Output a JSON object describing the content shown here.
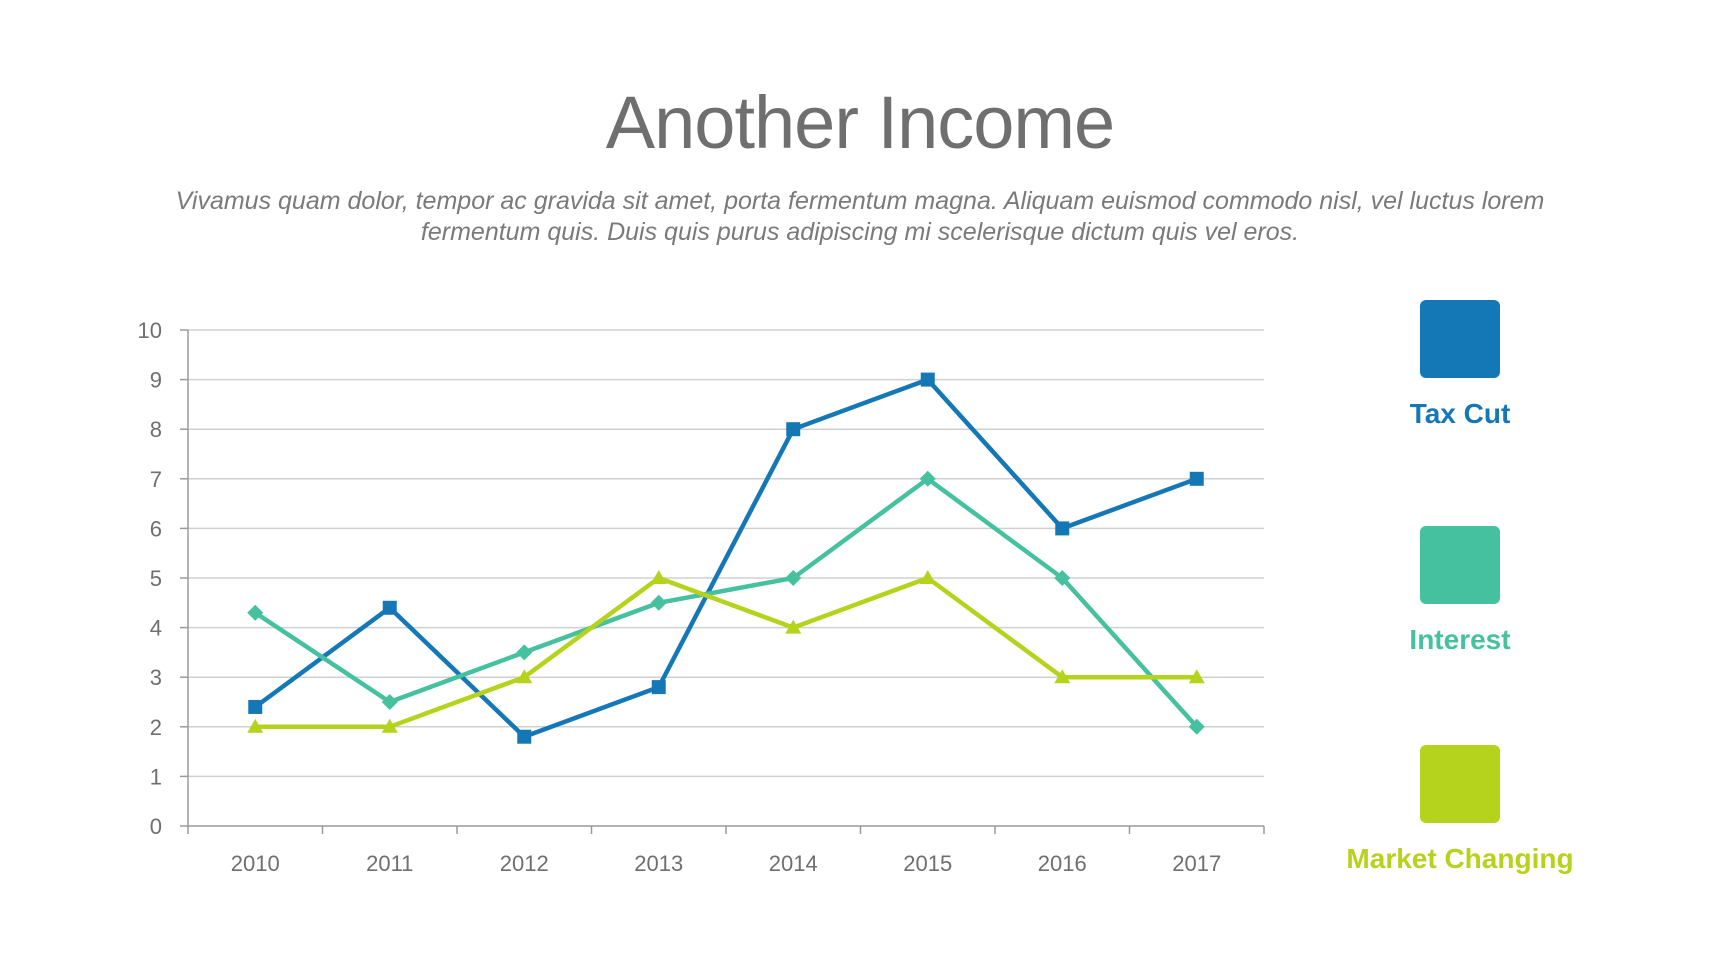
{
  "title": "Another Income",
  "subtitle_line1": "Vivamus quam dolor, tempor ac gravida sit amet,  porta fermentum magna. Aliquam euismod commodo nisl, vel luctus lorem",
  "subtitle_line2": "fermentum quis. Duis quis purus adipiscing mi scelerisque dictum quis vel eros.",
  "chart_data": {
    "type": "line",
    "title": "",
    "xlabel": "",
    "ylabel": "",
    "categories": [
      "2010",
      "2011",
      "2012",
      "2013",
      "2014",
      "2015",
      "2016",
      "2017"
    ],
    "ylim": [
      0,
      10
    ],
    "yticks": [
      "0",
      "1",
      "2",
      "3",
      "4",
      "5",
      "6",
      "7",
      "8",
      "9",
      "10"
    ],
    "grid": true,
    "legend_placement": "right",
    "series": [
      {
        "name": "Tax Cut",
        "color": "#1578b6",
        "marker": "square",
        "values": [
          2.4,
          4.4,
          1.8,
          2.8,
          8,
          9,
          6,
          7
        ]
      },
      {
        "name": "Interest",
        "color": "#45c19f",
        "marker": "diamond",
        "values": [
          4.3,
          2.5,
          3.5,
          4.5,
          5,
          7,
          5,
          2
        ]
      },
      {
        "name": "Market Changing",
        "color": "#b5d31c",
        "marker": "triangle",
        "values": [
          2,
          2,
          3,
          5,
          4,
          5,
          3,
          3
        ]
      }
    ]
  }
}
